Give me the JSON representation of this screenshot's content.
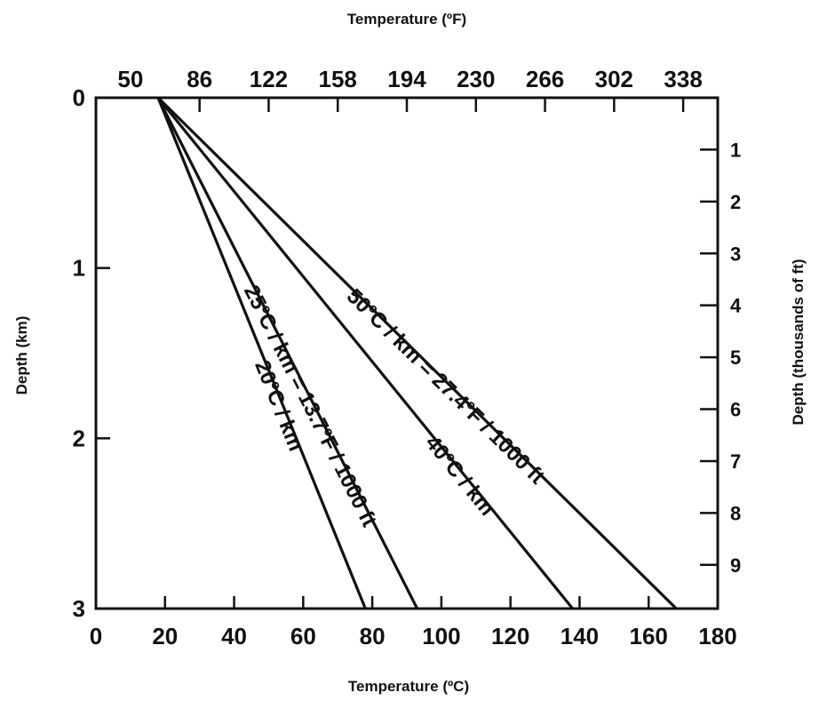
{
  "chart_data": {
    "type": "line",
    "x_bottom": {
      "label": "Temperature (ºC)",
      "range": [
        0,
        180
      ],
      "ticks": [
        0,
        20,
        40,
        60,
        80,
        100,
        120,
        140,
        160,
        180
      ]
    },
    "x_top": {
      "label": "Temperature (ºF)",
      "ticks": [
        50,
        86,
        122,
        158,
        194,
        230,
        266,
        302,
        338
      ]
    },
    "y_left": {
      "label": "Depth (km)",
      "range": [
        0,
        3
      ],
      "ticks": [
        0,
        1,
        2,
        3
      ]
    },
    "y_right": {
      "label": "Depth (thousands of ft)",
      "ticks": [
        1,
        2,
        3,
        4,
        5,
        6,
        7,
        8,
        9
      ]
    },
    "series": [
      {
        "name": "20ºC / km",
        "x": [
          18,
          78
        ],
        "y": [
          0,
          3
        ]
      },
      {
        "name": "25ºC / km = 13.7ºF / 1000 ft",
        "x": [
          18,
          93
        ],
        "y": [
          0,
          3
        ]
      },
      {
        "name": "40ºC / km",
        "x": [
          18,
          138
        ],
        "y": [
          0,
          3
        ]
      },
      {
        "name": "50ºC / km = 27.4ºF / 1000 ft",
        "x": [
          18,
          168
        ],
        "y": [
          0,
          3
        ]
      }
    ],
    "line_labels": [
      {
        "text": "20ºC / km",
        "series": 0,
        "pos": 0.6,
        "offset": -12
      },
      {
        "text": "25ºC / km = 13.7ºF / 1000 ft",
        "series": 1,
        "pos": 0.6,
        "offset": -12
      },
      {
        "text": "40ºC / km",
        "series": 2,
        "pos": 0.735,
        "offset": -12
      },
      {
        "text": "50ºC / km = 27.4ºF / 1000 ft",
        "series": 3,
        "pos": 0.56,
        "offset": -12
      }
    ],
    "grid": false,
    "legend": "none"
  }
}
